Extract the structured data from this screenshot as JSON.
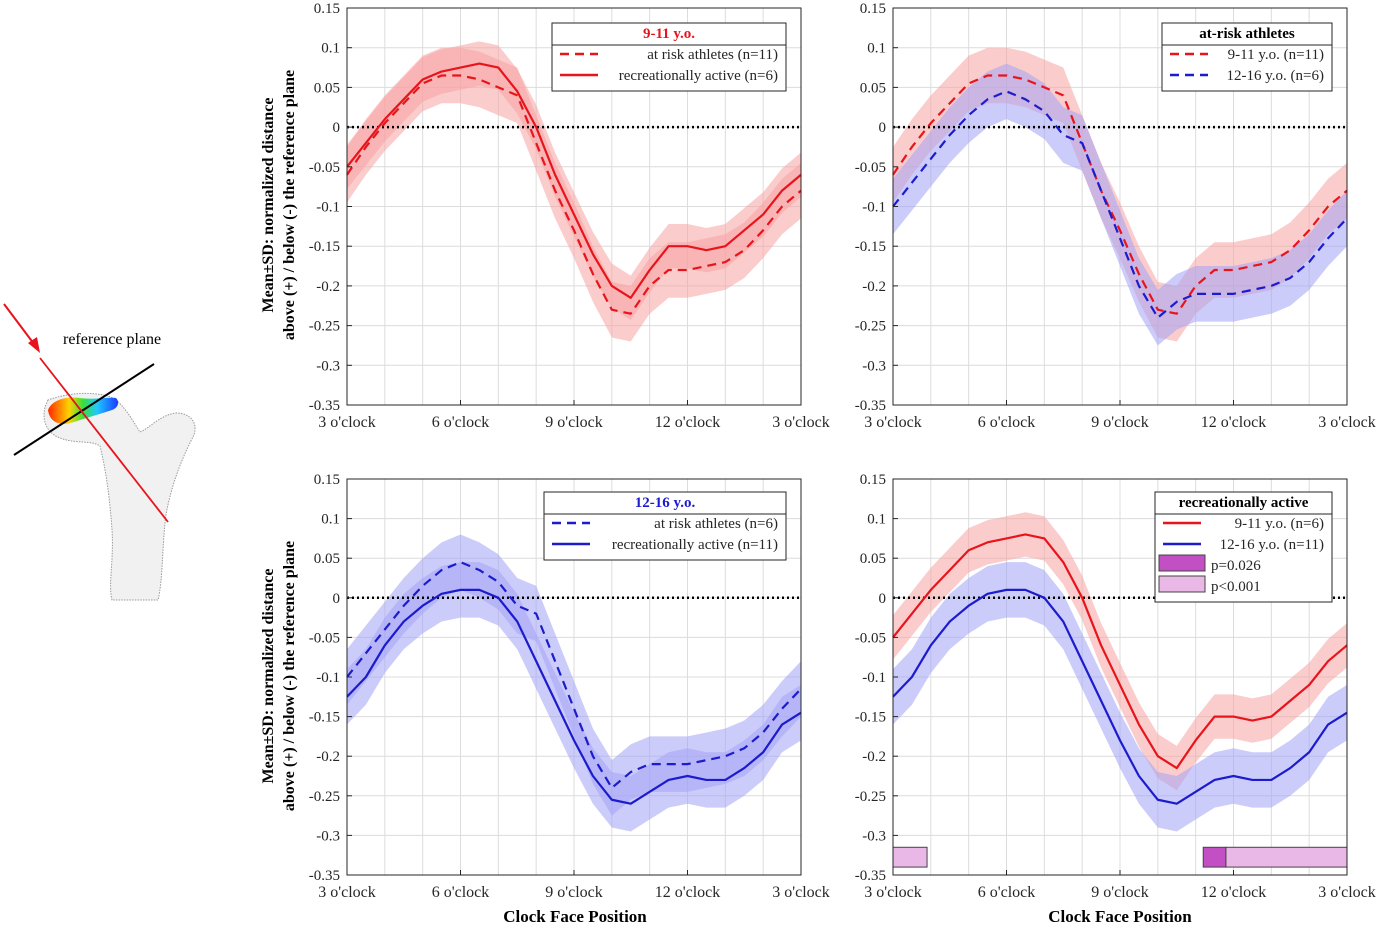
{
  "figure": {
    "ylabel_line1": "Mean±SD: normalized distance",
    "ylabel_line2": "above (+) / below (-) the reference plane",
    "xlabel": "Clock Face Position",
    "inset": {
      "label": "reference plane"
    },
    "colors": {
      "red": "#e8141c",
      "red_band": "#f7a3a3",
      "blue": "#1c1ccc",
      "blue_band": "#a3a3f5",
      "sig_dark": "#c24fc4",
      "sig_light": "#eab8e6"
    }
  },
  "chart_data": [
    {
      "type": "line",
      "title": "9-11 y.o.",
      "title_color": "#e8141c",
      "xlabel": "",
      "ylabel": "Mean±SD: normalized distance above (+) / below (-) the reference plane",
      "x_tick_labels": [
        "3 o'clock",
        "6 o'clock",
        "9 o'clock",
        "12 o'clock",
        "3 o'clock"
      ],
      "x_tick_pos": [
        0,
        3,
        6,
        9,
        12
      ],
      "xlim": [
        0,
        12
      ],
      "ylim": [
        -0.35,
        0.15
      ],
      "y_ticks": [
        0.15,
        0.1,
        0.05,
        0,
        -0.05,
        -0.1,
        -0.15,
        -0.2,
        -0.25,
        -0.3,
        -0.35
      ],
      "grid": true,
      "reference_line": 0,
      "legend_position": "top-right",
      "series": [
        {
          "name": "at risk athletes (n=11)",
          "color": "#e8141c",
          "dash": true,
          "sd": 0.035,
          "band_color": "#f7a3a3",
          "x": [
            0,
            0.5,
            1,
            1.5,
            2,
            2.5,
            3,
            3.5,
            4,
            4.5,
            5,
            5.5,
            6,
            6.5,
            7,
            7.5,
            8,
            8.5,
            9,
            9.5,
            10,
            10.5,
            11,
            11.5,
            12
          ],
          "y": [
            -0.06,
            -0.025,
            0.005,
            0.03,
            0.055,
            0.065,
            0.065,
            0.06,
            0.05,
            0.04,
            -0.02,
            -0.08,
            -0.13,
            -0.185,
            -0.23,
            -0.235,
            -0.2,
            -0.18,
            -0.18,
            -0.175,
            -0.17,
            -0.155,
            -0.13,
            -0.1,
            -0.08
          ]
        },
        {
          "name": "recreationally active (n=6)",
          "color": "#e8141c",
          "dash": false,
          "sd": 0.028,
          "band_color": "#f7a3a3",
          "x": [
            0,
            0.5,
            1,
            1.5,
            2,
            2.5,
            3,
            3.5,
            4,
            4.5,
            5,
            5.5,
            6,
            6.5,
            7,
            7.5,
            8,
            8.5,
            9,
            9.5,
            10,
            10.5,
            11,
            11.5,
            12
          ],
          "y": [
            -0.05,
            -0.02,
            0.01,
            0.035,
            0.06,
            0.07,
            0.075,
            0.08,
            0.075,
            0.045,
            0.0,
            -0.06,
            -0.11,
            -0.16,
            -0.2,
            -0.215,
            -0.18,
            -0.15,
            -0.15,
            -0.155,
            -0.15,
            -0.13,
            -0.11,
            -0.08,
            -0.06
          ]
        }
      ]
    },
    {
      "type": "line",
      "title": "at-risk athletes",
      "title_color": "#000000",
      "xlabel": "",
      "ylabel": "",
      "x_tick_labels": [
        "3 o'clock",
        "6 o'clock",
        "9 o'clock",
        "12 o'clock",
        "3 o'clock"
      ],
      "x_tick_pos": [
        0,
        3,
        6,
        9,
        12
      ],
      "xlim": [
        0,
        12
      ],
      "ylim": [
        -0.35,
        0.15
      ],
      "y_ticks": [
        0.15,
        0.1,
        0.05,
        0,
        -0.05,
        -0.1,
        -0.15,
        -0.2,
        -0.25,
        -0.3,
        -0.35
      ],
      "grid": true,
      "reference_line": 0,
      "legend_position": "top-right",
      "series": [
        {
          "name": "9-11 y.o. (n=11)",
          "color": "#e8141c",
          "dash": true,
          "sd": 0.035,
          "band_color": "#f7a3a3",
          "x": [
            0,
            0.5,
            1,
            1.5,
            2,
            2.5,
            3,
            3.5,
            4,
            4.5,
            5,
            5.5,
            6,
            6.5,
            7,
            7.5,
            8,
            8.5,
            9,
            9.5,
            10,
            10.5,
            11,
            11.5,
            12
          ],
          "y": [
            -0.06,
            -0.025,
            0.005,
            0.03,
            0.055,
            0.065,
            0.065,
            0.06,
            0.05,
            0.04,
            -0.02,
            -0.08,
            -0.13,
            -0.185,
            -0.23,
            -0.235,
            -0.2,
            -0.18,
            -0.18,
            -0.175,
            -0.17,
            -0.155,
            -0.13,
            -0.1,
            -0.08
          ]
        },
        {
          "name": "12-16 y.o. (n=6)",
          "color": "#1c1ccc",
          "dash": true,
          "sd": 0.035,
          "band_color": "#a3a3f5",
          "x": [
            0,
            0.5,
            1,
            1.5,
            2,
            2.5,
            3,
            3.5,
            4,
            4.5,
            5,
            5.5,
            6,
            6.5,
            7,
            7.5,
            8,
            8.5,
            9,
            9.5,
            10,
            10.5,
            11,
            11.5,
            12
          ],
          "y": [
            -0.1,
            -0.07,
            -0.04,
            -0.01,
            0.015,
            0.035,
            0.045,
            0.035,
            0.02,
            -0.01,
            -0.02,
            -0.08,
            -0.14,
            -0.2,
            -0.24,
            -0.22,
            -0.21,
            -0.21,
            -0.21,
            -0.205,
            -0.2,
            -0.19,
            -0.17,
            -0.14,
            -0.115
          ]
        }
      ]
    },
    {
      "type": "line",
      "title": "12-16 y.o.",
      "title_color": "#1c1ccc",
      "xlabel": "Clock Face Position",
      "ylabel": "Mean±SD: normalized distance above (+) / below (-) the reference plane",
      "x_tick_labels": [
        "3 o'clock",
        "6 o'clock",
        "9 o'clock",
        "12 o'clock",
        "3 o'clock"
      ],
      "x_tick_pos": [
        0,
        3,
        6,
        9,
        12
      ],
      "xlim": [
        0,
        12
      ],
      "ylim": [
        -0.35,
        0.15
      ],
      "y_ticks": [
        0.15,
        0.1,
        0.05,
        0,
        -0.05,
        -0.1,
        -0.15,
        -0.2,
        -0.25,
        -0.3,
        -0.35
      ],
      "grid": true,
      "reference_line": 0,
      "legend_position": "top-right",
      "series": [
        {
          "name": "at risk athletes (n=6)",
          "color": "#1c1ccc",
          "dash": true,
          "sd": 0.035,
          "band_color": "#a3a3f5",
          "x": [
            0,
            0.5,
            1,
            1.5,
            2,
            2.5,
            3,
            3.5,
            4,
            4.5,
            5,
            5.5,
            6,
            6.5,
            7,
            7.5,
            8,
            8.5,
            9,
            9.5,
            10,
            10.5,
            11,
            11.5,
            12
          ],
          "y": [
            -0.1,
            -0.07,
            -0.04,
            -0.01,
            0.015,
            0.035,
            0.045,
            0.035,
            0.02,
            -0.01,
            -0.02,
            -0.08,
            -0.14,
            -0.2,
            -0.24,
            -0.22,
            -0.21,
            -0.21,
            -0.21,
            -0.205,
            -0.2,
            -0.19,
            -0.17,
            -0.14,
            -0.115
          ]
        },
        {
          "name": "recreationally active (n=11)",
          "color": "#1c1ccc",
          "dash": false,
          "sd": 0.035,
          "band_color": "#a3a3f5",
          "x": [
            0,
            0.5,
            1,
            1.5,
            2,
            2.5,
            3,
            3.5,
            4,
            4.5,
            5,
            5.5,
            6,
            6.5,
            7,
            7.5,
            8,
            8.5,
            9,
            9.5,
            10,
            10.5,
            11,
            11.5,
            12
          ],
          "y": [
            -0.125,
            -0.1,
            -0.06,
            -0.03,
            -0.01,
            0.005,
            0.01,
            0.01,
            0.0,
            -0.03,
            -0.08,
            -0.13,
            -0.18,
            -0.225,
            -0.255,
            -0.26,
            -0.245,
            -0.23,
            -0.225,
            -0.23,
            -0.23,
            -0.215,
            -0.195,
            -0.16,
            -0.145
          ]
        }
      ]
    },
    {
      "type": "line",
      "title": "recreationally active",
      "title_color": "#000000",
      "xlabel": "Clock Face Position",
      "ylabel": "",
      "x_tick_labels": [
        "3 o'clock",
        "6 o'clock",
        "9 o'clock",
        "12 o'clock",
        "3 o'clock"
      ],
      "x_tick_pos": [
        0,
        3,
        6,
        9,
        12
      ],
      "xlim": [
        0,
        12
      ],
      "ylim": [
        -0.35,
        0.15
      ],
      "y_ticks": [
        0.15,
        0.1,
        0.05,
        0,
        -0.05,
        -0.1,
        -0.15,
        -0.2,
        -0.25,
        -0.3,
        -0.35
      ],
      "grid": true,
      "reference_line": 0,
      "legend_position": "top-right",
      "series": [
        {
          "name": "9-11 y.o. (n=6)",
          "color": "#e8141c",
          "dash": false,
          "sd": 0.028,
          "band_color": "#f7a3a3",
          "x": [
            0,
            0.5,
            1,
            1.5,
            2,
            2.5,
            3,
            3.5,
            4,
            4.5,
            5,
            5.5,
            6,
            6.5,
            7,
            7.5,
            8,
            8.5,
            9,
            9.5,
            10,
            10.5,
            11,
            11.5,
            12
          ],
          "y": [
            -0.05,
            -0.02,
            0.01,
            0.035,
            0.06,
            0.07,
            0.075,
            0.08,
            0.075,
            0.045,
            0.0,
            -0.06,
            -0.11,
            -0.16,
            -0.2,
            -0.215,
            -0.18,
            -0.15,
            -0.15,
            -0.155,
            -0.15,
            -0.13,
            -0.11,
            -0.08,
            -0.06
          ]
        },
        {
          "name": "12-16 y.o. (n=11)",
          "color": "#1c1ccc",
          "dash": false,
          "sd": 0.035,
          "band_color": "#a3a3f5",
          "x": [
            0,
            0.5,
            1,
            1.5,
            2,
            2.5,
            3,
            3.5,
            4,
            4.5,
            5,
            5.5,
            6,
            6.5,
            7,
            7.5,
            8,
            8.5,
            9,
            9.5,
            10,
            10.5,
            11,
            11.5,
            12
          ],
          "y": [
            -0.125,
            -0.1,
            -0.06,
            -0.03,
            -0.01,
            0.005,
            0.01,
            0.01,
            0.0,
            -0.03,
            -0.08,
            -0.13,
            -0.18,
            -0.225,
            -0.255,
            -0.26,
            -0.245,
            -0.23,
            -0.225,
            -0.23,
            -0.23,
            -0.215,
            -0.195,
            -0.16,
            -0.145
          ]
        }
      ],
      "significance_legend": [
        {
          "label": "p=0.026",
          "color": "#c24fc4"
        },
        {
          "label": "p<0.001",
          "color": "#eab8e6"
        }
      ],
      "significance_regions": [
        {
          "x_start": 0.0,
          "x_end": 0.9,
          "p": "p<0.001",
          "color": "#eab8e6"
        },
        {
          "x_start": 8.2,
          "x_end": 8.8,
          "p": "p=0.026",
          "color": "#c24fc4"
        },
        {
          "x_start": 8.8,
          "x_end": 12.0,
          "p": "p<0.001",
          "color": "#eab8e6"
        }
      ]
    }
  ]
}
